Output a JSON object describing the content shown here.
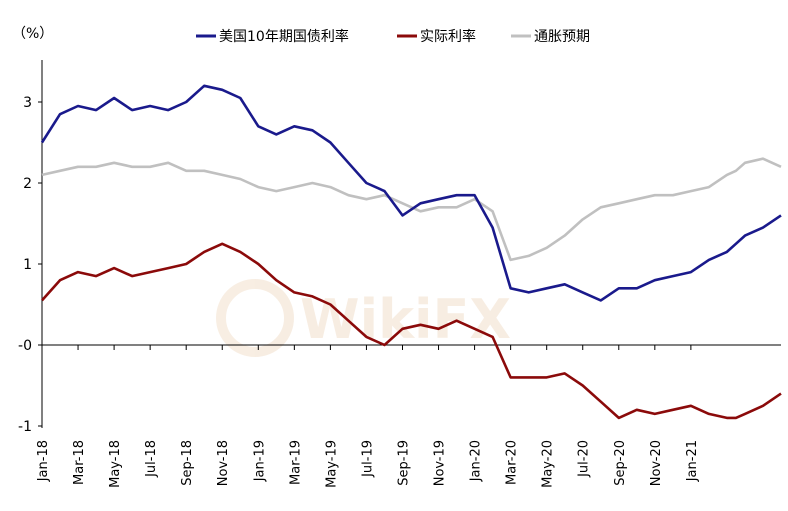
{
  "chart_data": {
    "type": "line",
    "title": "",
    "unit_label": "（%）",
    "ylim": [
      -1,
      3.5
    ],
    "yticks": [
      {
        "value": 3,
        "label": "3"
      },
      {
        "value": 2,
        "label": "2"
      },
      {
        "value": 1,
        "label": "1"
      },
      {
        "value": 0,
        "label": "-0"
      },
      {
        "value": -1,
        "label": "-1"
      }
    ],
    "xtick_labels": [
      "Jan-18",
      "Mar-18",
      "May-18",
      "Jul-18",
      "Sep-18",
      "Nov-18",
      "Jan-19",
      "Mar-19",
      "May-19",
      "Jul-19",
      "Sep-19",
      "Nov-19",
      "Jan-20",
      "Mar-20",
      "May-20",
      "Jul-20",
      "Sep-20",
      "Nov-20",
      "Jan-21"
    ],
    "x_months": [
      0,
      1,
      2,
      3,
      4,
      5,
      6,
      7,
      8,
      9,
      10,
      11,
      12,
      13,
      14,
      15,
      16,
      17,
      18,
      19,
      20,
      21,
      22,
      23,
      24,
      25,
      26,
      27,
      28,
      29,
      30,
      31,
      32,
      33,
      34,
      35,
      36,
      37,
      38,
      38.5,
      39,
      40,
      41
    ],
    "series": [
      {
        "name": "美国10年期国债利率",
        "color": "#1a1a8c",
        "values": [
          2.5,
          2.85,
          2.95,
          2.9,
          3.05,
          2.9,
          2.95,
          2.9,
          3.0,
          3.2,
          3.15,
          3.05,
          2.7,
          2.6,
          2.7,
          2.65,
          2.5,
          2.25,
          2.0,
          1.9,
          1.6,
          1.75,
          1.8,
          1.85,
          1.85,
          1.45,
          0.7,
          0.65,
          0.7,
          0.75,
          0.65,
          0.55,
          0.7,
          0.7,
          0.8,
          0.85,
          0.9,
          1.05,
          1.15,
          1.25,
          1.35,
          1.45,
          1.6
        ]
      },
      {
        "name": "实际利率",
        "color": "#8b0a0a",
        "values": [
          0.55,
          0.8,
          0.9,
          0.85,
          0.95,
          0.85,
          0.9,
          0.95,
          1.0,
          1.15,
          1.25,
          1.15,
          1.0,
          0.8,
          0.65,
          0.6,
          0.5,
          0.3,
          0.1,
          0.0,
          0.2,
          0.25,
          0.2,
          0.3,
          0.2,
          0.1,
          -0.4,
          -0.4,
          -0.4,
          -0.35,
          -0.5,
          -0.7,
          -0.9,
          -0.8,
          -0.85,
          -0.8,
          -0.75,
          -0.85,
          -0.9,
          -0.9,
          -0.85,
          -0.75,
          -0.6
        ]
      },
      {
        "name": "通胀预期",
        "color": "#c0c0c0",
        "values": [
          2.1,
          2.15,
          2.2,
          2.2,
          2.25,
          2.2,
          2.2,
          2.25,
          2.15,
          2.15,
          2.1,
          2.05,
          1.95,
          1.9,
          1.95,
          2.0,
          1.95,
          1.85,
          1.8,
          1.85,
          1.75,
          1.65,
          1.7,
          1.7,
          1.8,
          1.65,
          1.05,
          1.1,
          1.2,
          1.35,
          1.55,
          1.7,
          1.75,
          1.8,
          1.85,
          1.85,
          1.9,
          1.95,
          2.1,
          2.15,
          2.25,
          2.3,
          2.2
        ]
      }
    ],
    "legend": {
      "position": "top"
    },
    "grid": false
  },
  "watermark": "WikiFX"
}
